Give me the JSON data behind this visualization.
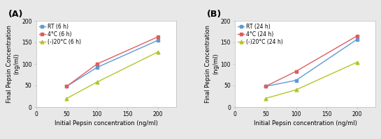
{
  "panel_A": {
    "label": "(A)",
    "x": [
      50,
      100,
      200
    ],
    "series": [
      {
        "label": "RT (6 h)",
        "y": [
          48,
          92,
          155
        ],
        "color": "#5b9bd5",
        "marker": "s"
      },
      {
        "label": "4°C (6 h)",
        "y": [
          48,
          100,
          163
        ],
        "color": "#e05c5c",
        "marker": "s"
      },
      {
        "label": "(-)20°C (6 h)",
        "y": [
          20,
          58,
          128
        ],
        "color": "#b5c42a",
        "marker": "^"
      }
    ],
    "xlabel": "Initial Pepsin concentration (ng/ml)",
    "ylabel": "Final Pepsin Concentration\n(ng/ml)",
    "xlim": [
      0,
      230
    ],
    "ylim": [
      0,
      200
    ],
    "xticks": [
      0,
      50,
      100,
      150,
      200
    ],
    "yticks": [
      0,
      50,
      100,
      150,
      200
    ]
  },
  "panel_B": {
    "label": "(B)",
    "x": [
      50,
      100,
      200
    ],
    "series": [
      {
        "label": "RT (24 h)",
        "y": [
          48,
          62,
          157
        ],
        "color": "#5b9bd5",
        "marker": "s"
      },
      {
        "label": "4°C (24 h)",
        "y": [
          48,
          83,
          165
        ],
        "color": "#e05c5c",
        "marker": "s"
      },
      {
        "label": "(-)20°C (24 h)",
        "y": [
          20,
          40,
          104
        ],
        "color": "#b5c42a",
        "marker": "^"
      }
    ],
    "xlabel": "Initial Pepsin concentration (ng/ml)",
    "ylabel": "Final Pepsin Concentration\n(ng/ml)",
    "xlim": [
      0,
      230
    ],
    "ylim": [
      0,
      200
    ],
    "xticks": [
      0,
      50,
      100,
      150,
      200
    ],
    "yticks": [
      0,
      50,
      100,
      150,
      200
    ]
  },
  "fig_bg_color": "#e8e8e8",
  "axis_bg": "#ffffff",
  "label_fontsize": 6.0,
  "tick_fontsize": 5.5,
  "legend_fontsize": 5.5,
  "panel_label_fontsize": 9,
  "linewidth": 1.0,
  "markersize": 3.5,
  "spine_color": "#bbbbbb",
  "spine_lw": 0.5
}
